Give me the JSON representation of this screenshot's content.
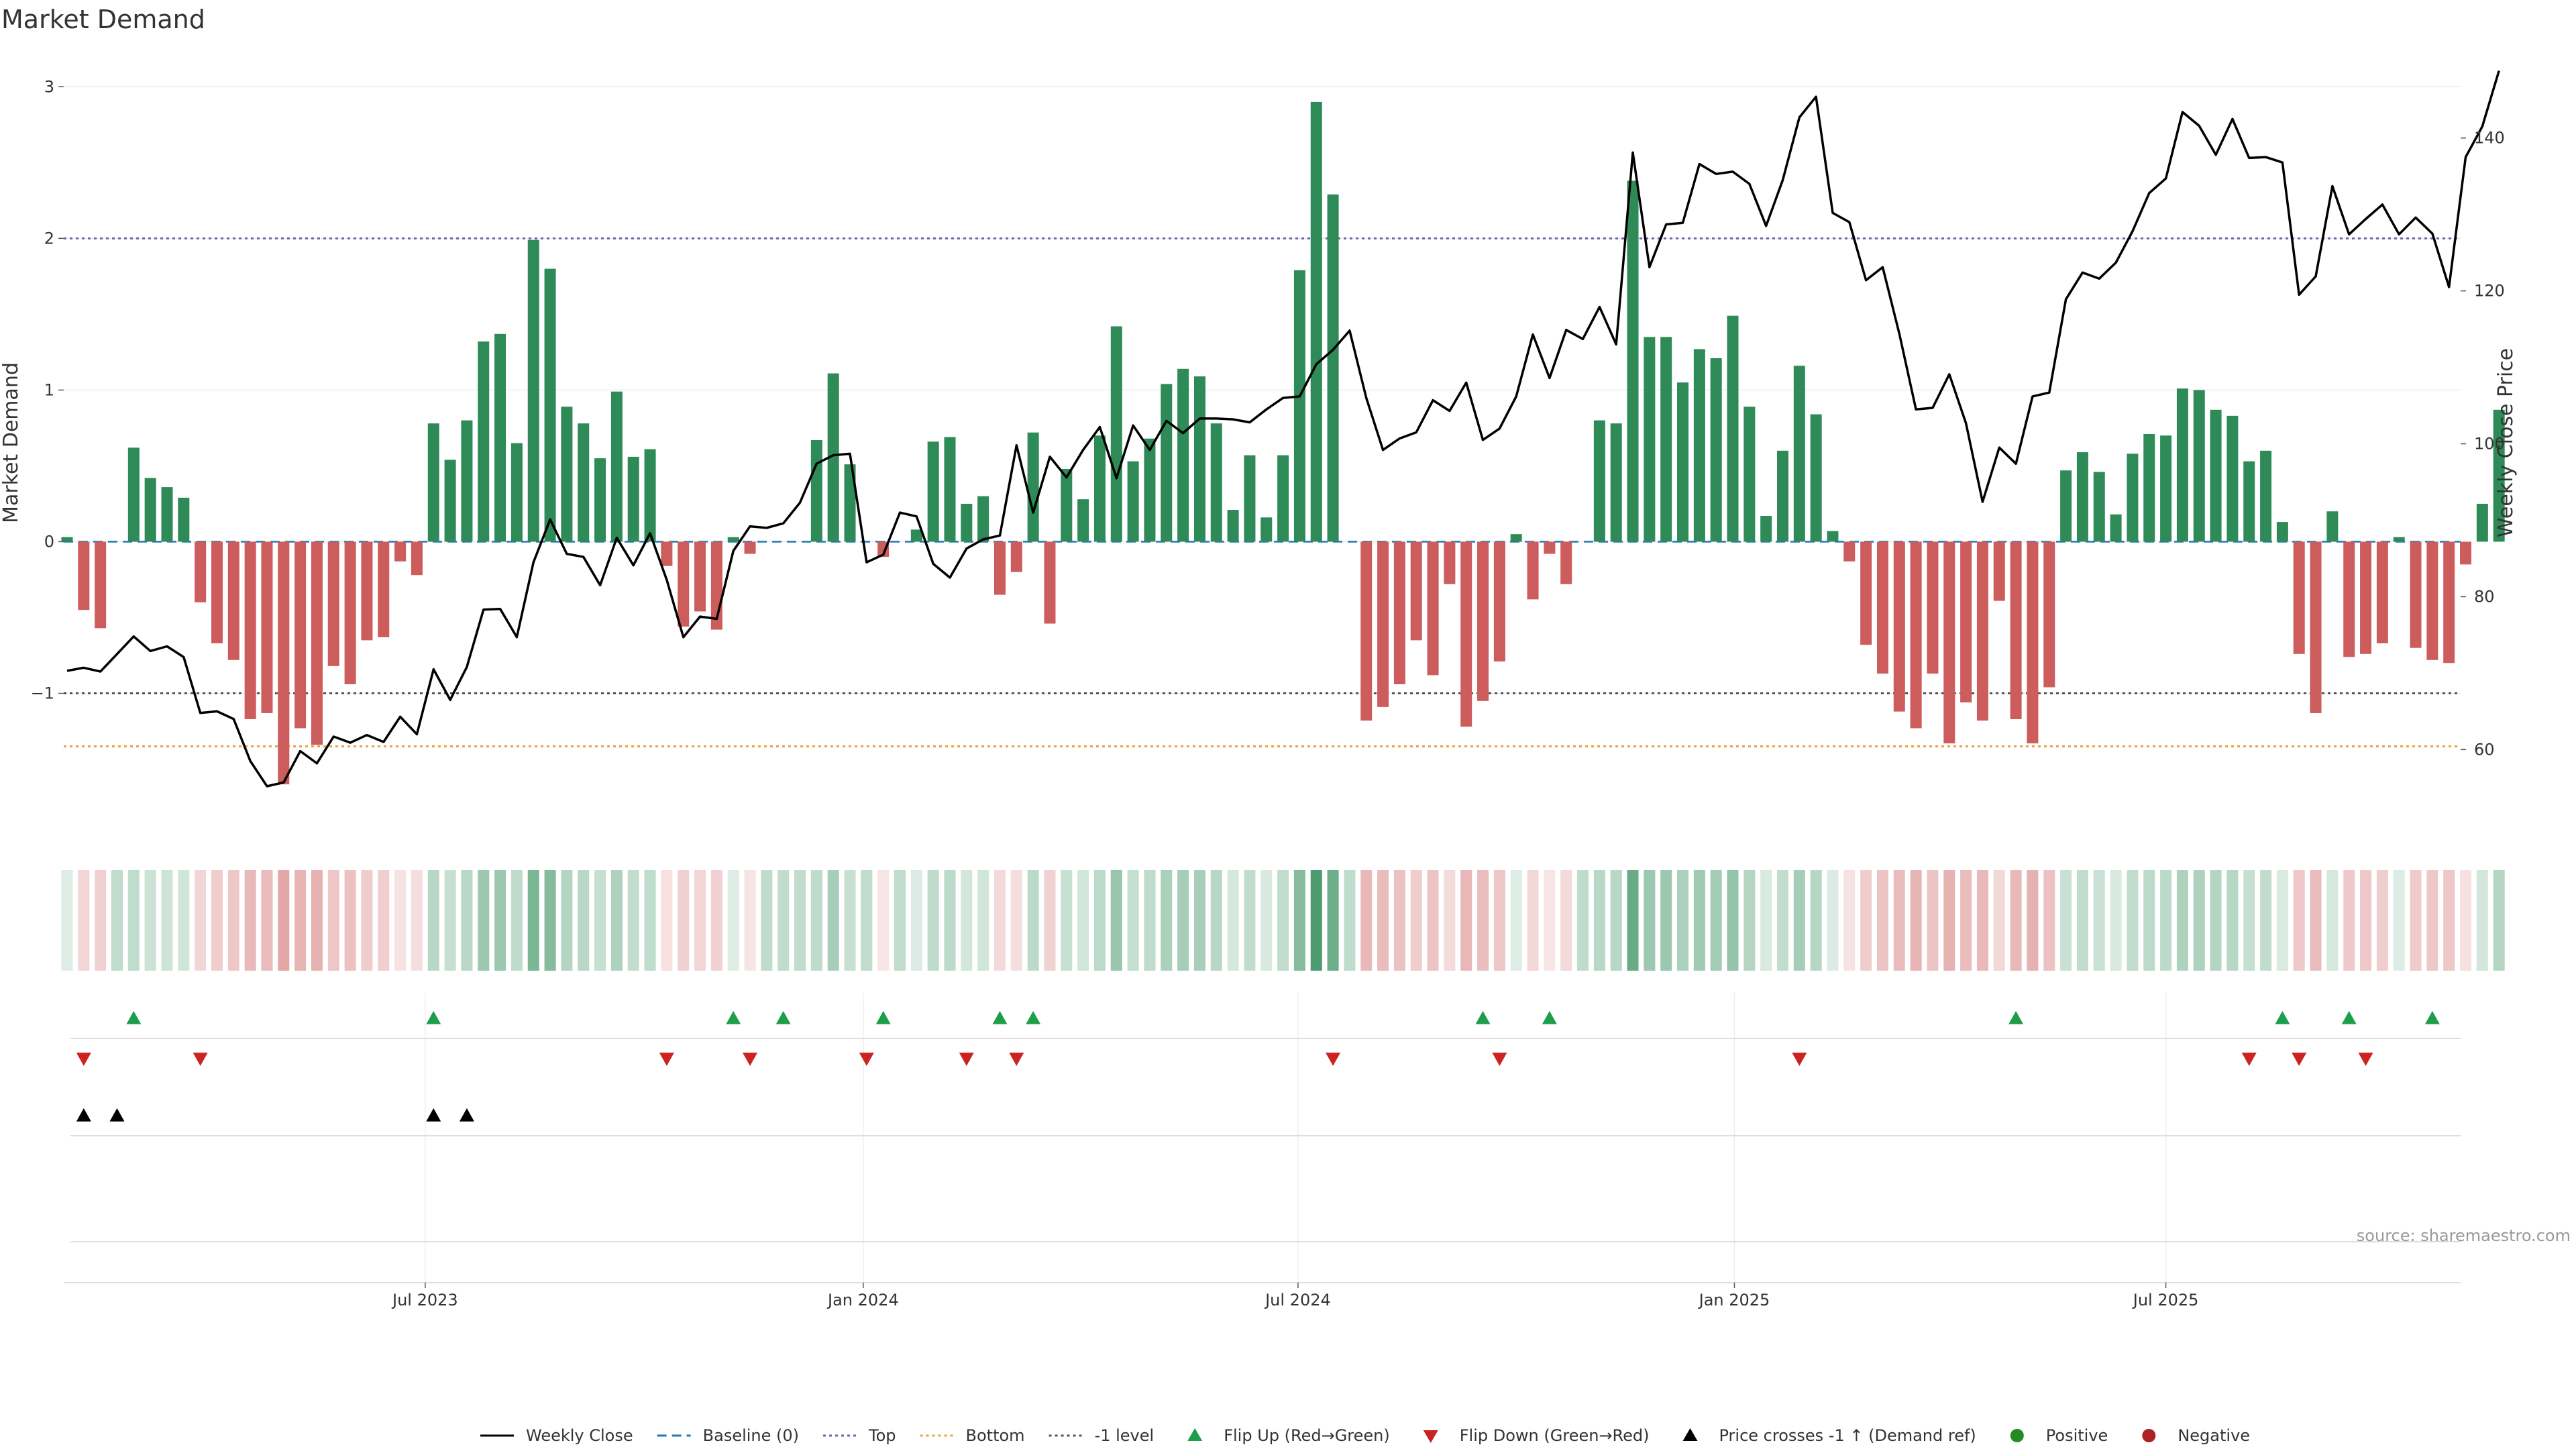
{
  "chart_data": {
    "type": "bar",
    "title": "Market Demand",
    "ylabel": "Market Demand",
    "y2label": "Weekly Close Price",
    "ylim": [
      -1.9,
      3.05
    ],
    "y2lim": [
      49.5,
      147.7
    ],
    "yticks": [
      "3",
      "2",
      "1",
      "0",
      "−1"
    ],
    "y2ticks": [
      "140",
      "120",
      "100",
      "80",
      "60"
    ],
    "xlim_weeks": [
      0,
      144
    ],
    "xticks": [
      {
        "label": "Jul 2023",
        "week": 21.5
      },
      {
        "label": "Jan 2024",
        "week": 47.8
      },
      {
        "label": "Jul 2024",
        "week": 73.9
      },
      {
        "label": "Jan 2025",
        "week": 100.1
      },
      {
        "label": "Jul 2025",
        "week": 126.0
      }
    ],
    "reference_lines": {
      "top": 2,
      "bottom": -1.35,
      "minus_one": -1,
      "baseline": 0
    },
    "colors": {
      "positive": "#2e8b57",
      "negative": "#cd5c5c",
      "price": "#000000",
      "baseline": "#1f77b4",
      "top": "#7a5fb0",
      "bottom": "#e6a23c",
      "minus_one": "#555555",
      "flip_up": "#1e9e4a",
      "flip_down": "#cc2222",
      "cross": "#000000",
      "positive_dot": "#228b22",
      "negative_dot": "#aa2222"
    },
    "series": [
      {
        "name": "Market Demand",
        "values": [
          0.03,
          -0.45,
          -0.57,
          0,
          0.62,
          0.42,
          0.36,
          0.29,
          -0.4,
          -0.67,
          -0.78,
          -1.17,
          -1.13,
          -1.6,
          -1.23,
          -1.34,
          -0.82,
          -0.94,
          -0.65,
          -0.63,
          -0.13,
          -0.22,
          0.78,
          0.54,
          0.8,
          1.32,
          1.37,
          0.65,
          1.99,
          1.8,
          0.89,
          0.78,
          0.55,
          0.99,
          0.56,
          0.61,
          -0.16,
          -0.56,
          -0.46,
          -0.58,
          0.03,
          -0.08,
          0,
          0,
          0,
          0.67,
          1.11,
          0.51,
          0,
          -0.1,
          0,
          0.08,
          0.66,
          0.69,
          0.25,
          0.3,
          -0.35,
          -0.2,
          0.72,
          -0.54,
          0.48,
          0.28,
          0.7,
          1.42,
          0.53,
          0.68,
          1.04,
          1.14,
          1.09,
          0.78,
          0.21,
          0.57,
          0.16,
          0.57,
          1.79,
          2.9,
          2.29,
          0,
          -1.18,
          -1.09,
          -0.94,
          -0.65,
          -0.88,
          -0.28,
          -1.22,
          -1.05,
          -0.79,
          0.05,
          -0.38,
          -0.08,
          -0.28,
          0,
          0.8,
          0.78,
          2.38,
          1.35,
          1.35,
          1.05,
          1.27,
          1.21,
          1.49,
          0.89,
          0.17,
          0.6,
          1.16,
          0.84,
          0.07,
          -0.13,
          -0.68,
          -0.87,
          -1.12,
          -1.23,
          -0.87,
          -1.33,
          -1.06,
          -1.18,
          -0.39,
          -1.17,
          -1.33,
          -0.96,
          0.47,
          0.59,
          0.46,
          0.18,
          0.58,
          0.71,
          0.7,
          1.01,
          1.0,
          0.87,
          0.83,
          0.53,
          0.6,
          0.13,
          -0.74,
          -1.13,
          0.2,
          -0.76,
          -0.74,
          -0.67,
          0.03,
          -0.7,
          -0.78,
          -0.8,
          -0.15,
          0.25,
          0.87
        ]
      },
      {
        "name": "Weekly Close",
        "values": [
          70.3,
          70.7,
          70.2,
          72.5,
          74.8,
          72.9,
          73.5,
          72.1,
          64.8,
          65.0,
          64.0,
          58.5,
          55.2,
          55.7,
          59.8,
          58.2,
          61.7,
          60.9,
          61.9,
          61.0,
          64.3,
          62.0,
          70.5,
          66.5,
          70.8,
          78.3,
          78.4,
          74.7,
          84.5,
          90.1,
          85.6,
          85.2,
          81.5,
          87.7,
          84.1,
          88.3,
          82.2,
          74.7,
          77.4,
          77.1,
          86.0,
          89.2,
          89.0,
          89.6,
          92.3,
          97.4,
          98.5,
          98.7,
          84.5,
          85.5,
          91.0,
          90.5,
          84.3,
          82.5,
          86.3,
          87.5,
          88.0,
          99.8,
          91.0,
          98.3,
          95.6,
          99.2,
          102.2,
          95.5,
          102.4,
          99.2,
          103.0,
          101.4,
          103.3,
          103.3,
          103.2,
          102.8,
          104.5,
          106.0,
          106.2,
          110.4,
          112.3,
          114.8,
          106.0,
          99.2,
          100.7,
          101.5,
          105.7,
          104.3,
          108.0,
          100.5,
          102.0,
          106.2,
          114.3,
          108.6,
          114.9,
          113.7,
          117.9,
          113.0,
          138.1,
          123.1,
          128.7,
          128.9,
          136.6,
          135.3,
          135.6,
          134.0,
          128.5,
          134.5,
          142.7,
          145.4,
          130.2,
          129.0,
          121.4,
          123.1,
          114.4,
          104.5,
          104.7,
          109.1,
          102.7,
          92.4,
          99.5,
          97.4,
          106.2,
          106.7,
          118.9,
          122.4,
          121.6,
          123.7,
          127.8,
          132.8,
          134.7,
          143.4,
          141.6,
          137.8,
          142.5,
          137.4,
          137.5,
          136.8,
          119.5,
          121.9,
          133.7,
          127.4,
          129.4,
          131.3,
          127.4,
          129.6,
          127.5,
          120.5,
          137.5,
          141.5,
          148.8
        ]
      }
    ],
    "flip_up_weeks": [
      4,
      22,
      40,
      43,
      49,
      56,
      58,
      85,
      89,
      117,
      133,
      137,
      142
    ],
    "flip_down_weeks": [
      1,
      8,
      36,
      41,
      48,
      54,
      57,
      76,
      86,
      104,
      131,
      134,
      138
    ],
    "price_cross_weeks": [
      1,
      3,
      22,
      24
    ],
    "legend": [
      {
        "label": "Weekly Close",
        "kind": "line-solid",
        "color": "#000000"
      },
      {
        "label": "Baseline (0)",
        "kind": "line-dashed",
        "color": "#1f77b4"
      },
      {
        "label": "Top",
        "kind": "line-dotted",
        "color": "#7a5fb0"
      },
      {
        "label": "Bottom",
        "kind": "line-dotted",
        "color": "#e6a23c"
      },
      {
        "label": "-1 level",
        "kind": "line-dotted",
        "color": "#555555"
      },
      {
        "label": "Flip Up (Red→Green)",
        "kind": "tri-up",
        "color": "#1e9e4a"
      },
      {
        "label": "Flip Down (Green→Red)",
        "kind": "tri-down",
        "color": "#cc2222"
      },
      {
        "label": "Price crosses -1 ↑ (Demand ref)",
        "kind": "tri-up",
        "color": "#000000"
      },
      {
        "label": "Positive",
        "kind": "dot",
        "color": "#228b22"
      },
      {
        "label": "Negative",
        "kind": "dot",
        "color": "#aa2222"
      }
    ],
    "legend_placement": "bottom-center",
    "grid": true,
    "source": "source: sharemaestro.com"
  }
}
